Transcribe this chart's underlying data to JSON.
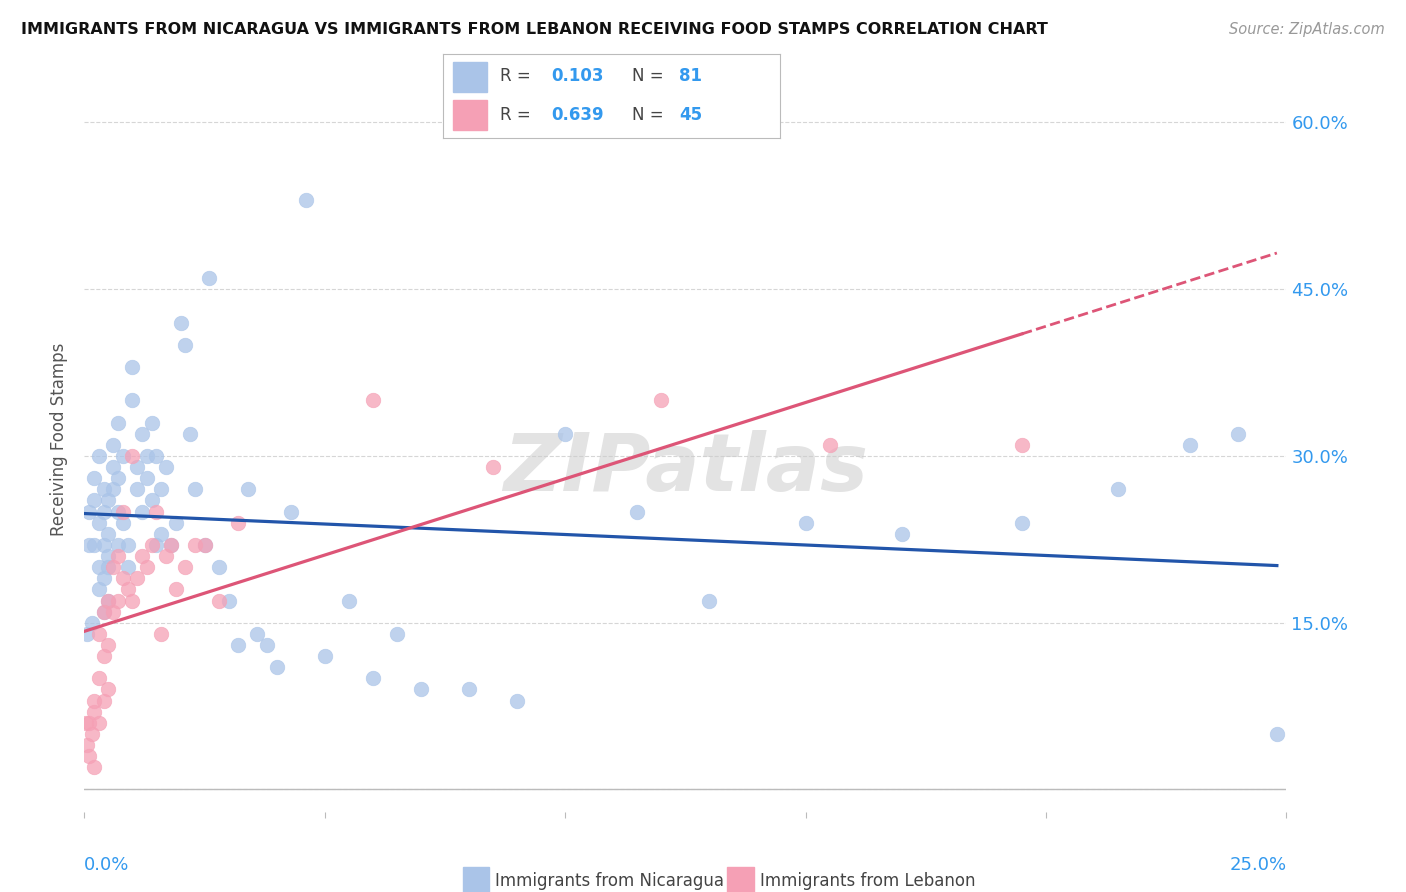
{
  "title": "IMMIGRANTS FROM NICARAGUA VS IMMIGRANTS FROM LEBANON RECEIVING FOOD STAMPS CORRELATION CHART",
  "source": "Source: ZipAtlas.com",
  "ylabel": "Receiving Food Stamps",
  "yticks": [
    0.0,
    0.15,
    0.3,
    0.45,
    0.6
  ],
  "ytick_labels": [
    "",
    "15.0%",
    "30.0%",
    "45.0%",
    "60.0%"
  ],
  "xticks": [
    0.0,
    0.05,
    0.1,
    0.15,
    0.2,
    0.25
  ],
  "xtick_labels": [
    "0.0%",
    "",
    "",
    "",
    "",
    "25.0%"
  ],
  "xlim": [
    0.0,
    0.25
  ],
  "ylim": [
    -0.02,
    0.65
  ],
  "nicaragua_color": "#aac4e8",
  "lebanon_color": "#f5a0b5",
  "trendline_nicaragua_color": "#2255aa",
  "trendline_lebanon_color": "#dd5577",
  "watermark": "ZIPatlas",
  "nicaragua_x": [
    0.0005,
    0.001,
    0.001,
    0.0015,
    0.002,
    0.002,
    0.002,
    0.003,
    0.003,
    0.003,
    0.003,
    0.004,
    0.004,
    0.004,
    0.004,
    0.004,
    0.005,
    0.005,
    0.005,
    0.005,
    0.005,
    0.006,
    0.006,
    0.006,
    0.007,
    0.007,
    0.007,
    0.007,
    0.008,
    0.008,
    0.009,
    0.009,
    0.01,
    0.01,
    0.011,
    0.011,
    0.012,
    0.012,
    0.013,
    0.013,
    0.014,
    0.014,
    0.015,
    0.015,
    0.016,
    0.016,
    0.017,
    0.018,
    0.019,
    0.02,
    0.021,
    0.022,
    0.023,
    0.025,
    0.026,
    0.028,
    0.03,
    0.032,
    0.034,
    0.036,
    0.038,
    0.04,
    0.043,
    0.046,
    0.05,
    0.055,
    0.06,
    0.065,
    0.07,
    0.08,
    0.09,
    0.1,
    0.115,
    0.13,
    0.15,
    0.17,
    0.195,
    0.215,
    0.23,
    0.24,
    0.248
  ],
  "nicaragua_y": [
    0.14,
    0.25,
    0.22,
    0.15,
    0.26,
    0.28,
    0.22,
    0.18,
    0.2,
    0.24,
    0.3,
    0.16,
    0.22,
    0.27,
    0.25,
    0.19,
    0.17,
    0.21,
    0.23,
    0.26,
    0.2,
    0.27,
    0.29,
    0.31,
    0.22,
    0.25,
    0.28,
    0.33,
    0.3,
    0.24,
    0.22,
    0.2,
    0.35,
    0.38,
    0.27,
    0.29,
    0.25,
    0.32,
    0.3,
    0.28,
    0.26,
    0.33,
    0.3,
    0.22,
    0.27,
    0.23,
    0.29,
    0.22,
    0.24,
    0.42,
    0.4,
    0.32,
    0.27,
    0.22,
    0.46,
    0.2,
    0.17,
    0.13,
    0.27,
    0.14,
    0.13,
    0.11,
    0.25,
    0.53,
    0.12,
    0.17,
    0.1,
    0.14,
    0.09,
    0.09,
    0.08,
    0.32,
    0.25,
    0.17,
    0.24,
    0.23,
    0.24,
    0.27,
    0.31,
    0.32,
    0.05
  ],
  "lebanon_x": [
    0.0003,
    0.0005,
    0.001,
    0.001,
    0.0015,
    0.002,
    0.002,
    0.002,
    0.003,
    0.003,
    0.003,
    0.004,
    0.004,
    0.004,
    0.005,
    0.005,
    0.005,
    0.006,
    0.006,
    0.007,
    0.007,
    0.008,
    0.008,
    0.009,
    0.01,
    0.01,
    0.011,
    0.012,
    0.013,
    0.014,
    0.015,
    0.016,
    0.017,
    0.018,
    0.019,
    0.021,
    0.023,
    0.025,
    0.028,
    0.032,
    0.06,
    0.085,
    0.12,
    0.155,
    0.195
  ],
  "lebanon_y": [
    0.06,
    0.04,
    0.03,
    0.06,
    0.05,
    0.07,
    0.02,
    0.08,
    0.1,
    0.06,
    0.14,
    0.12,
    0.08,
    0.16,
    0.13,
    0.17,
    0.09,
    0.16,
    0.2,
    0.17,
    0.21,
    0.19,
    0.25,
    0.18,
    0.17,
    0.3,
    0.19,
    0.21,
    0.2,
    0.22,
    0.25,
    0.14,
    0.21,
    0.22,
    0.18,
    0.2,
    0.22,
    0.22,
    0.17,
    0.24,
    0.35,
    0.29,
    0.35,
    0.31,
    0.31
  ]
}
